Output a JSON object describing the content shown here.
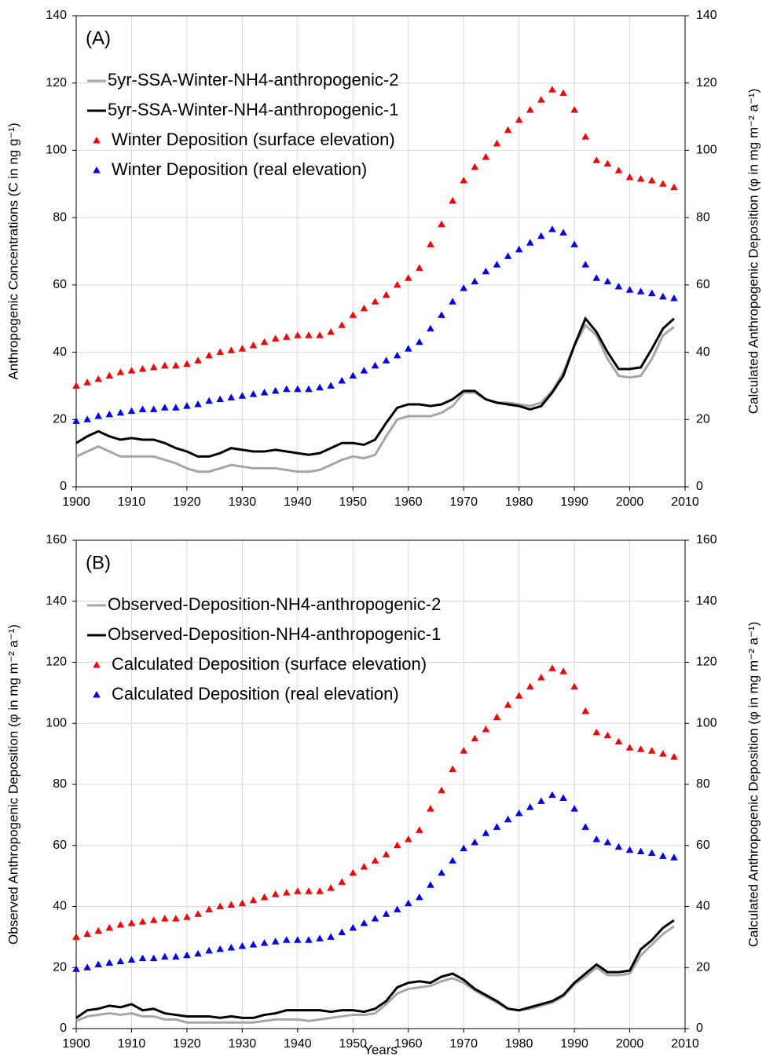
{
  "chart_data": [
    {
      "type": "line",
      "annotation": "(A)",
      "y_label": "Anthropogenic Concentrations (C in ng g⁻¹)",
      "y2_label": "Calculated Anthropogenic Deposition (φ in mg m⁻² a⁻¹)",
      "xlim": [
        1900,
        2010
      ],
      "xticks": [
        1900,
        1910,
        1920,
        1930,
        1940,
        1950,
        1960,
        1970,
        1980,
        1990,
        2000,
        2010
      ],
      "ylim": [
        0,
        140
      ],
      "yticks": [
        0,
        20,
        40,
        60,
        80,
        100,
        120,
        140
      ],
      "y2lim": [
        0,
        140
      ],
      "y2ticks": [
        0,
        20,
        40,
        60,
        80,
        100,
        120,
        140
      ],
      "grid": true,
      "legend": "upper left",
      "x": [
        1900,
        1902,
        1904,
        1906,
        1908,
        1910,
        1912,
        1914,
        1916,
        1918,
        1920,
        1922,
        1924,
        1926,
        1928,
        1930,
        1932,
        1934,
        1936,
        1938,
        1940,
        1942,
        1944,
        1946,
        1948,
        1950,
        1952,
        1954,
        1956,
        1958,
        1960,
        1962,
        1964,
        1966,
        1968,
        1970,
        1972,
        1974,
        1976,
        1978,
        1980,
        1982,
        1984,
        1986,
        1988,
        1990,
        1992,
        1994,
        1996,
        1998,
        2000,
        2002,
        2004,
        2006,
        2008
      ],
      "series": [
        {
          "name": "5yr-SSA-Winter-NH4-anthropogenic-2",
          "color": "#a6a6a6",
          "style": "line",
          "values": [
            9,
            10.5,
            12,
            10.5,
            9,
            9,
            9,
            9,
            8,
            7,
            5.5,
            4.5,
            4.5,
            5.5,
            6.5,
            6,
            5.5,
            5.5,
            5.5,
            5,
            4.5,
            4.5,
            5,
            6.5,
            8,
            9,
            8.5,
            9.5,
            15,
            20,
            21,
            21,
            21,
            22,
            24,
            28,
            28,
            26,
            25,
            25,
            24.5,
            24,
            25,
            28.5,
            34,
            42,
            48,
            45,
            38,
            33,
            32.5,
            33,
            38,
            45,
            47.5
          ]
        },
        {
          "name": "5yr-SSA-Winter-NH4-anthropogenic-1",
          "color": "#000000",
          "style": "line",
          "values": [
            13,
            15,
            16.5,
            15,
            14,
            14.5,
            14,
            14,
            13,
            11.5,
            10.5,
            9,
            9,
            10,
            11.5,
            11,
            10.5,
            10.5,
            11,
            10.5,
            10,
            9.5,
            10,
            11.5,
            13,
            13,
            12.5,
            14,
            19,
            23.5,
            24.5,
            24.5,
            24,
            24.5,
            26,
            28.5,
            28.5,
            26,
            25,
            24.5,
            24,
            23,
            24,
            28,
            33,
            42,
            50,
            46,
            40,
            35,
            35,
            35.5,
            41,
            47,
            50
          ]
        },
        {
          "name": "Winter Deposition (surface elevation)",
          "color": "#ff0000",
          "style": "triangle",
          "axis": "y2",
          "values": [
            30,
            31,
            32,
            33,
            34,
            34.5,
            35,
            35.5,
            36,
            36,
            36.5,
            37.5,
            39,
            40,
            40.5,
            41,
            42,
            43,
            44,
            44.5,
            45,
            45,
            45,
            46,
            48,
            51,
            53,
            55,
            57,
            60,
            62,
            65,
            72,
            78,
            85,
            91,
            95,
            98,
            102,
            106,
            109,
            112,
            115,
            118,
            117,
            112,
            104,
            97,
            96,
            94,
            92,
            91.5,
            91,
            90,
            89
          ]
        },
        {
          "name": "Winter Deposition (real elevation)",
          "color": "#0000ff",
          "style": "triangle",
          "axis": "y2",
          "values": [
            19.5,
            20,
            21,
            21.5,
            22,
            22.5,
            23,
            23,
            23.5,
            23.5,
            24,
            24.5,
            25.5,
            26,
            26.5,
            27,
            27.5,
            28,
            28.5,
            29,
            29,
            29,
            29.5,
            30,
            31.5,
            33,
            34.5,
            36,
            37.5,
            39,
            41,
            43,
            47,
            51,
            55,
            59,
            61,
            64,
            66,
            68.5,
            70.5,
            72.5,
            74.5,
            76.5,
            75.5,
            72,
            66,
            62,
            61,
            59.5,
            58.5,
            58,
            57.5,
            56.5,
            56
          ]
        }
      ]
    },
    {
      "type": "line",
      "annotation": "(B)",
      "x_label": "Years",
      "y_label": "Observed Anthropogenic Deposition (φ in mg m⁻² a⁻¹)",
      "y2_label": "Calculated Anthropogenic Deposition (φ in mg m⁻² a⁻¹)",
      "xlim": [
        1900,
        2010
      ],
      "xticks": [
        1900,
        1910,
        1920,
        1930,
        1940,
        1950,
        1960,
        1970,
        1980,
        1990,
        2000,
        2010
      ],
      "ylim": [
        0,
        160
      ],
      "yticks": [
        0,
        20,
        40,
        60,
        80,
        100,
        120,
        140,
        160
      ],
      "y2lim": [
        0,
        160
      ],
      "y2ticks": [
        0,
        20,
        40,
        60,
        80,
        100,
        120,
        140,
        160
      ],
      "grid": true,
      "legend": "upper left",
      "x": [
        1900,
        1902,
        1904,
        1906,
        1908,
        1910,
        1912,
        1914,
        1916,
        1918,
        1920,
        1922,
        1924,
        1926,
        1928,
        1930,
        1932,
        1934,
        1936,
        1938,
        1940,
        1942,
        1944,
        1946,
        1948,
        1950,
        1952,
        1954,
        1956,
        1958,
        1960,
        1962,
        1964,
        1966,
        1968,
        1970,
        1972,
        1974,
        1976,
        1978,
        1980,
        1982,
        1984,
        1986,
        1988,
        1990,
        1992,
        1994,
        1996,
        1998,
        2000,
        2002,
        2004,
        2006,
        2008
      ],
      "series": [
        {
          "name": "Observed-Deposition-NH4-anthropogenic-2",
          "color": "#a6a6a6",
          "style": "line",
          "values": [
            2.5,
            4,
            4.5,
            5,
            4.5,
            5,
            4,
            4,
            3,
            3,
            2,
            2,
            2,
            2,
            2,
            2,
            2,
            2.5,
            3,
            3,
            3,
            2.5,
            3,
            3.5,
            4,
            4.5,
            4.5,
            5,
            8,
            11.5,
            13,
            13.5,
            14,
            15.5,
            16.5,
            15,
            12.5,
            10.5,
            8.5,
            6.5,
            6,
            6.5,
            7.5,
            8.5,
            10.5,
            14.5,
            17,
            20,
            17.5,
            17.5,
            18,
            24,
            27.5,
            31,
            33.5
          ]
        },
        {
          "name": "Observed-Deposition-NH4-anthropogenic-1",
          "color": "#000000",
          "style": "line",
          "values": [
            3.5,
            6,
            6.5,
            7.5,
            7,
            8,
            6,
            6.5,
            5,
            4.5,
            4,
            4,
            4,
            3.5,
            4,
            3.5,
            3.5,
            4.5,
            5,
            6,
            6,
            6,
            6,
            5.5,
            6,
            6,
            5.5,
            6.5,
            9,
            13.5,
            15,
            15.5,
            15,
            17,
            18,
            16,
            13,
            11,
            9,
            6.5,
            6,
            7,
            8,
            9,
            11,
            15,
            18,
            21,
            18.5,
            18.5,
            19,
            26,
            29,
            33,
            35.5
          ]
        },
        {
          "name": "Calculated Deposition (surface elevation)",
          "color": "#ff0000",
          "style": "triangle",
          "axis": "y2",
          "values": [
            30,
            31,
            32,
            33,
            34,
            34.5,
            35,
            35.5,
            36,
            36,
            36.5,
            37.5,
            39,
            40,
            40.5,
            41,
            42,
            43,
            44,
            44.5,
            45,
            45,
            45,
            46,
            48,
            51,
            53,
            55,
            57,
            60,
            62,
            65,
            72,
            78,
            85,
            91,
            95,
            98,
            102,
            106,
            109,
            112,
            115,
            118,
            117,
            112,
            104,
            97,
            96,
            94,
            92,
            91.5,
            91,
            90,
            89
          ]
        },
        {
          "name": "Calculated Deposition (real elevation)",
          "color": "#0000ff",
          "style": "triangle",
          "axis": "y2",
          "values": [
            19.5,
            20,
            21,
            21.5,
            22,
            22.5,
            23,
            23,
            23.5,
            23.5,
            24,
            24.5,
            25.5,
            26,
            26.5,
            27,
            27.5,
            28,
            28.5,
            29,
            29,
            29,
            29.5,
            30,
            31.5,
            33,
            34.5,
            36,
            37.5,
            39,
            41,
            43,
            47,
            51,
            55,
            59,
            61,
            64,
            66,
            68.5,
            70.5,
            72.5,
            74.5,
            76.5,
            75.5,
            72,
            66,
            62,
            61,
            59.5,
            58.5,
            58,
            57.5,
            56.5,
            56
          ]
        }
      ]
    }
  ]
}
